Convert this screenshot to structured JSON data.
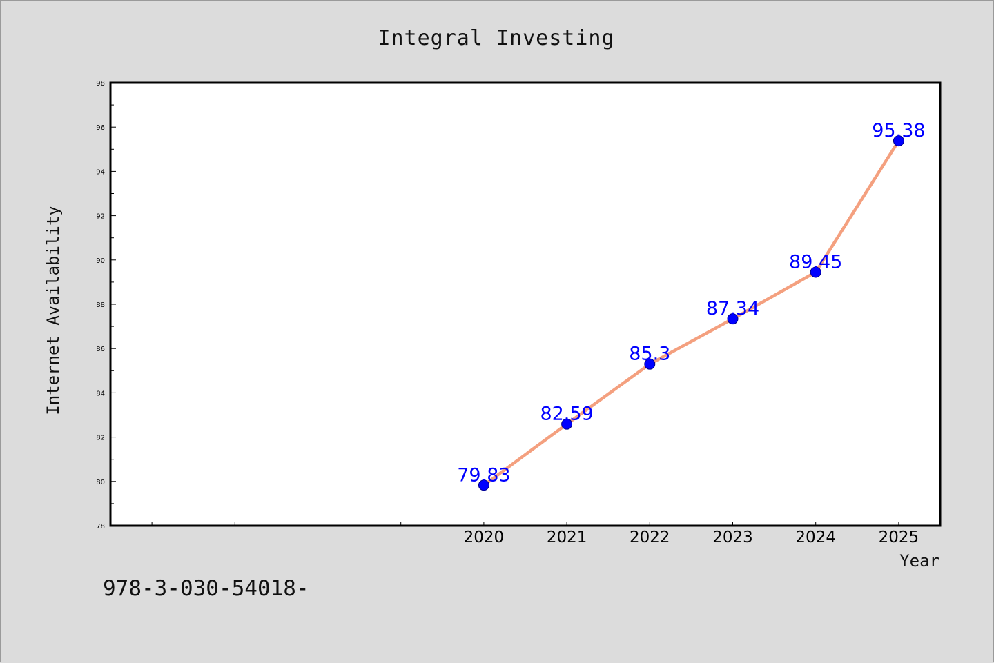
{
  "footer_text": "978-3-030-54018-",
  "colors": {
    "background": "#dcdcdc",
    "plot_background": "#ffffff",
    "line": "#f4a07f",
    "marker": "#0000ff",
    "label": "#0000ff"
  },
  "chart_data": {
    "type": "line",
    "title": "Integral Investing",
    "xlabel": "Year",
    "ylabel": "Internet Availability",
    "x": [
      2020,
      2021,
      2022,
      2023,
      2024,
      2025
    ],
    "series": [
      {
        "values": [
          79.83,
          82.59,
          85.3,
          87.34,
          89.45,
          95.38
        ]
      }
    ],
    "data_labels": [
      "79.83",
      "82.59",
      "85.3",
      "87.34",
      "89.45",
      "95.38"
    ],
    "ylim": [
      78,
      98
    ],
    "yticks": [
      78,
      80,
      82,
      84,
      86,
      88,
      90,
      92,
      94,
      96,
      98
    ],
    "xlim": [
      2015.5,
      2025.5
    ],
    "xtick_labels": [
      "2020",
      "2021",
      "2022",
      "2023",
      "2024",
      "2025"
    ],
    "grid": false,
    "legend": "none"
  }
}
